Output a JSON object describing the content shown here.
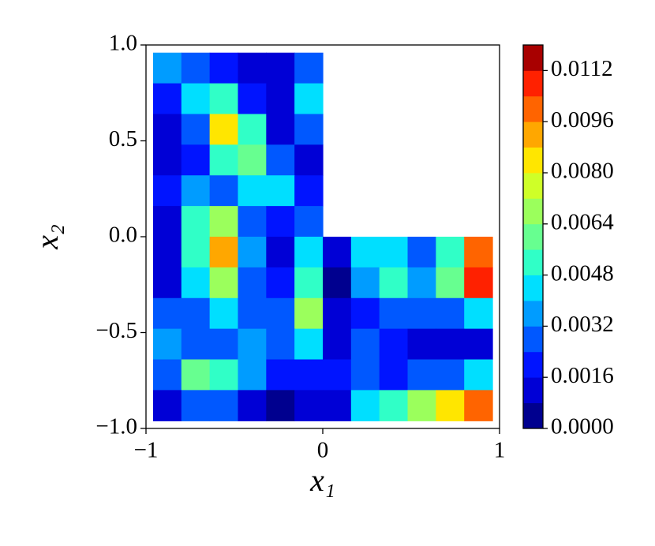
{
  "chart_data": {
    "type": "contourf",
    "x": [
      -0.88,
      -0.72,
      -0.56,
      -0.4,
      -0.24,
      -0.08,
      0.08,
      0.24,
      0.4,
      0.56,
      0.72,
      0.88
    ],
    "y": [
      0.88,
      0.72,
      0.56,
      0.4,
      0.24,
      0.08,
      -0.08,
      -0.24,
      -0.4,
      -0.56,
      -0.72,
      -0.88
    ],
    "z": [
      [
        0.0035,
        0.0025,
        0.002,
        0.0015,
        0.001,
        0.003,
        null,
        null,
        null,
        null,
        null,
        null
      ],
      [
        0.002,
        0.0045,
        0.0055,
        0.002,
        0.0008,
        0.0045,
        null,
        null,
        null,
        null,
        null,
        null
      ],
      [
        0.0015,
        0.0025,
        0.008,
        0.005,
        0.0015,
        0.0025,
        null,
        null,
        null,
        null,
        null,
        null
      ],
      [
        0.001,
        0.002,
        0.0055,
        0.006,
        0.003,
        0.0015,
        null,
        null,
        null,
        null,
        null,
        null
      ],
      [
        0.002,
        0.0035,
        0.003,
        0.0045,
        0.004,
        0.002,
        null,
        null,
        null,
        null,
        null,
        null
      ],
      [
        0.0015,
        0.005,
        0.0065,
        0.0025,
        0.002,
        0.003,
        null,
        null,
        null,
        null,
        null,
        null
      ],
      [
        0.0008,
        0.0055,
        0.009,
        0.0035,
        0.0012,
        0.004,
        0.0008,
        0.004,
        0.0045,
        0.003,
        0.0055,
        0.01
      ],
      [
        0.0015,
        0.004,
        0.007,
        0.003,
        0.002,
        0.0055,
        0.0005,
        0.0035,
        0.005,
        0.0035,
        0.006,
        0.011
      ],
      [
        0.0025,
        0.003,
        0.004,
        0.0025,
        0.003,
        0.007,
        0.001,
        0.002,
        0.003,
        0.0025,
        0.0025,
        0.004
      ],
      [
        0.0035,
        0.0025,
        0.0025,
        0.0035,
        0.003,
        0.004,
        0.0015,
        0.003,
        0.002,
        0.001,
        0.0008,
        0.0015
      ],
      [
        0.003,
        0.006,
        0.005,
        0.0035,
        0.002,
        0.002,
        0.002,
        0.003,
        0.002,
        0.0025,
        0.003,
        0.0045
      ],
      [
        0.001,
        0.003,
        0.0025,
        0.001,
        0.0005,
        0.0008,
        0.0015,
        0.004,
        0.0055,
        0.0065,
        0.008,
        0.01
      ]
    ],
    "xlim": [
      -1,
      1
    ],
    "ylim": [
      -1,
      1
    ],
    "xticks": [
      {
        "value": -1,
        "label": "−1"
      },
      0,
      1
    ],
    "yticks": [
      {
        "value": -1,
        "label": "−1.0"
      },
      {
        "value": -0.5,
        "label": "−0.5"
      },
      {
        "value": 0,
        "label": "0.0"
      },
      {
        "value": 0.5,
        "label": "0.5"
      },
      {
        "value": 1,
        "label": "1.0"
      }
    ],
    "xlabel": "x₁",
    "ylabel": "x₂",
    "colorbar": {
      "lim": [
        0,
        0.012
      ],
      "levels": [
        0,
        0.0008,
        0.0016,
        0.0024,
        0.0032,
        0.004,
        0.0048,
        0.0056,
        0.0064,
        0.0072,
        0.008,
        0.0088,
        0.0096,
        0.0104,
        0.0112,
        0.012
      ],
      "colors": [
        "#00008f",
        "#0000d6",
        "#0014ff",
        "#0058ff",
        "#009cff",
        "#00dfff",
        "#30ffc7",
        "#67ff90",
        "#9bff5c",
        "#cfff28",
        "#ffe600",
        "#ffa700",
        "#ff6400",
        "#ff2100",
        "#a80000"
      ],
      "ticks": [
        {
          "value": 0,
          "label": "0.0000"
        },
        {
          "value": 0.0016,
          "label": "0.0016"
        },
        {
          "value": 0.0032,
          "label": "0.0032"
        },
        {
          "value": 0.0048,
          "label": "0.0048"
        },
        {
          "value": 0.0064,
          "label": "0.0064"
        },
        {
          "value": 0.008,
          "label": "0.0080"
        },
        {
          "value": 0.0096,
          "label": "0.0096"
        },
        {
          "value": 0.0112,
          "label": "0.0112"
        }
      ]
    }
  }
}
